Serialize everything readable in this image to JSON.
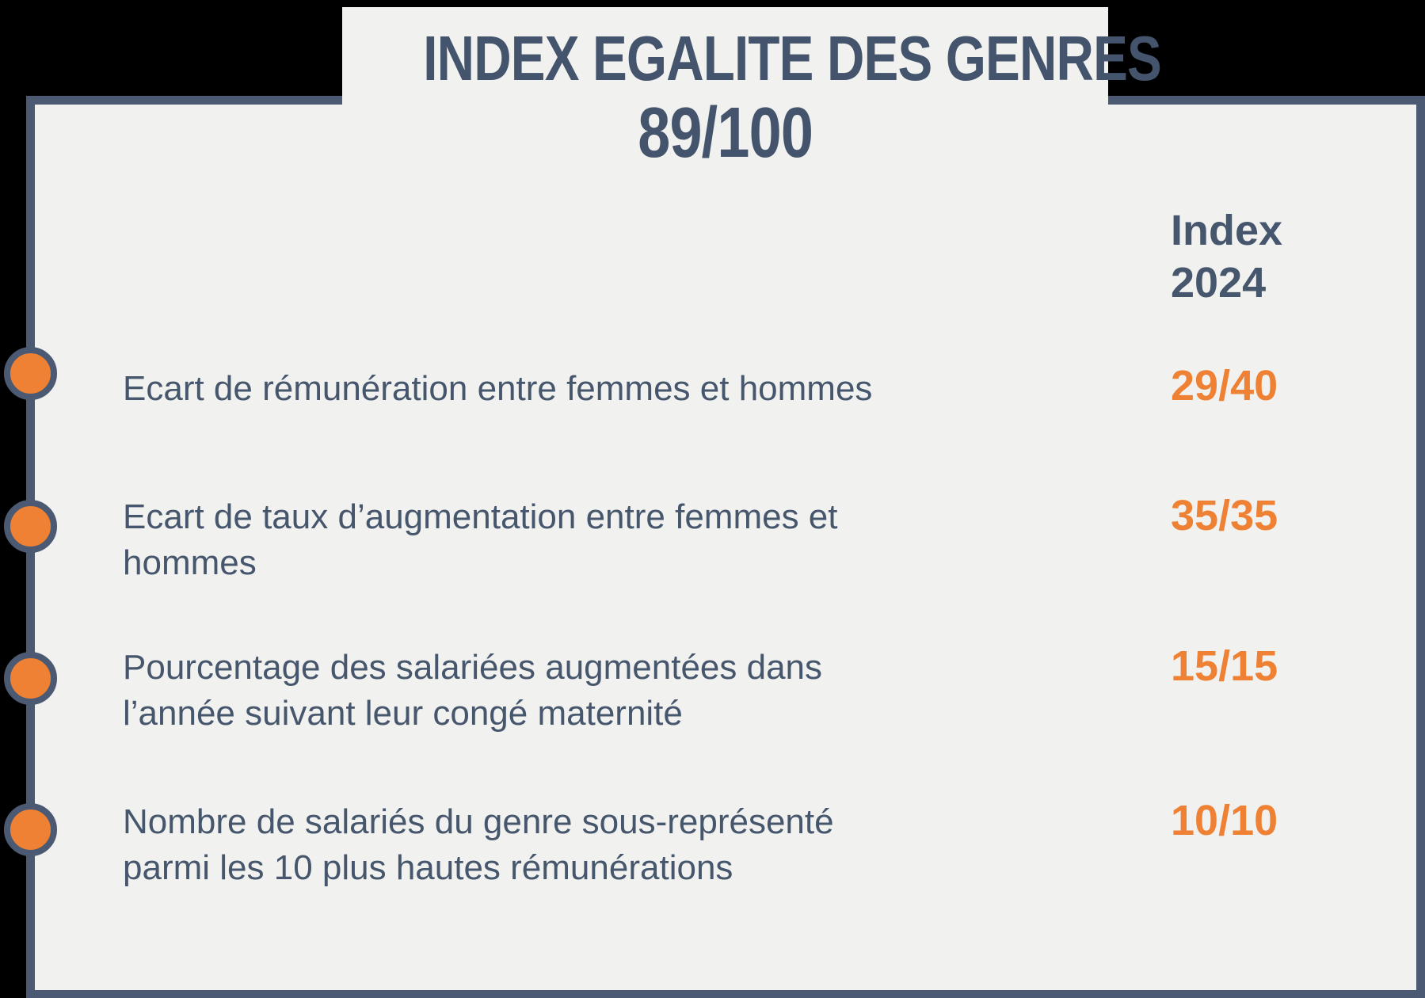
{
  "title": {
    "line1": "INDEX EGALITE DES GENRES",
    "overall_score": "89/100"
  },
  "table": {
    "column_header": "Index\n2024",
    "rows": [
      {
        "label": "Ecart de rémunération entre femmes et hommes",
        "score": "29/40"
      },
      {
        "label": "Ecart de taux d’augmentation entre femmes et\nhommes",
        "score": "35/35"
      },
      {
        "label": "Pourcentage des salariées augmentées dans\nl’année suivant leur congé maternité",
        "score": "15/15"
      },
      {
        "label": "Nombre de salariés du genre sous-représenté\nparmi les 10 plus hautes rémunérations",
        "score": "10/10"
      }
    ]
  },
  "colors": {
    "background": "#000000",
    "panel_background": "#F1F1EF",
    "border_slate": "#4B5A72",
    "text_slate": "#46566C",
    "accent_orange": "#EE8134"
  }
}
